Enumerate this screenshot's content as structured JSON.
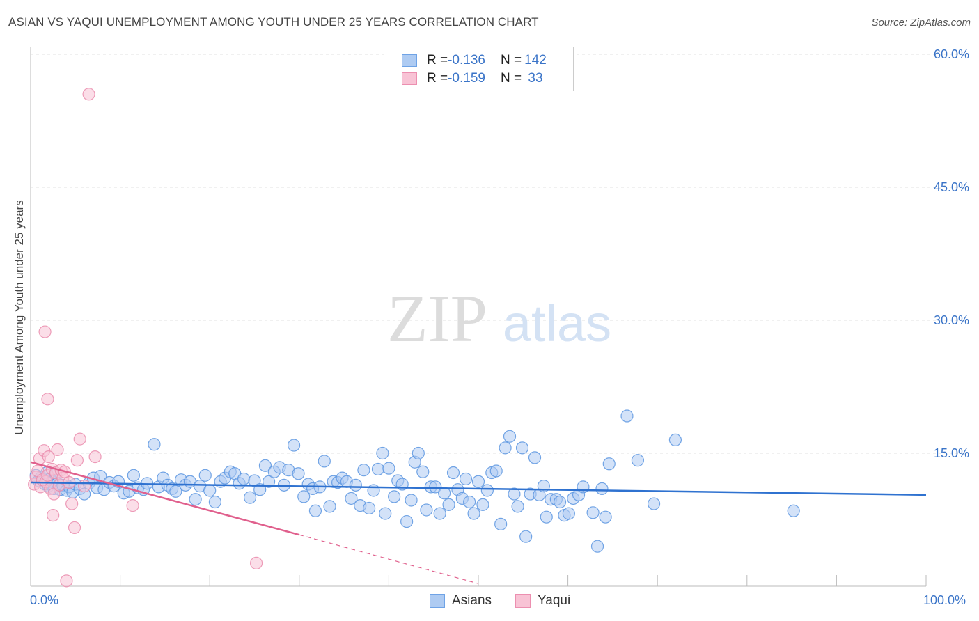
{
  "title": "ASIAN VS YAQUI UNEMPLOYMENT AMONG YOUTH UNDER 25 YEARS CORRELATION CHART",
  "source": "Source: ZipAtlas.com",
  "watermark": {
    "zip": "ZIP",
    "atlas": "atlas"
  },
  "legend": {
    "rows": [
      {
        "r_label": "R = ",
        "r_value": "-0.136",
        "n_label": "N = ",
        "n_value": "142",
        "color": "#6fa3e6",
        "fill": "#aecbf2"
      },
      {
        "r_label": "R = ",
        "r_value": "-0.159",
        "n_label": "N = ",
        "n_value": " 33",
        "color": "#ec8fb0",
        "fill": "#f8c3d5"
      }
    ]
  },
  "bottom_legend": {
    "asians": "Asians",
    "yaqui": "Yaqui"
  },
  "x_axis_labels": {
    "min": "0.0%",
    "max": "100.0%"
  },
  "chart_data": {
    "type": "scatter",
    "title": "ASIAN VS YAQUI UNEMPLOYMENT AMONG YOUTH UNDER 25 YEARS CORRELATION CHART",
    "xlabel": "",
    "ylabel": "Unemployment Among Youth under 25 years",
    "xlim": [
      0,
      100
    ],
    "ylim": [
      0,
      60
    ],
    "yticks": [
      15,
      30,
      45,
      60
    ],
    "ytick_labels": [
      "15.0%",
      "30.0%",
      "45.0%",
      "60.0%"
    ],
    "grid": true,
    "series": [
      {
        "name": "Asians",
        "color": "#5b95e0",
        "fill": "#aecbf2",
        "trend": {
          "x": [
            0,
            100
          ],
          "y": [
            11.7,
            10.3
          ],
          "color": "#2f72d0"
        },
        "points": [
          [
            0.6,
            12.5
          ],
          [
            0.9,
            11.9
          ],
          [
            1.2,
            12.3
          ],
          [
            1.4,
            12.0
          ],
          [
            1.6,
            11.5
          ],
          [
            1.8,
            12.8
          ],
          [
            2.0,
            11.3
          ],
          [
            2.2,
            12.1
          ],
          [
            2.4,
            11.8
          ],
          [
            2.6,
            11.0
          ],
          [
            2.8,
            12.6
          ],
          [
            3.0,
            11.6
          ],
          [
            3.3,
            10.9
          ],
          [
            3.6,
            11.4
          ],
          [
            4.0,
            10.8
          ],
          [
            4.3,
            11.2
          ],
          [
            4.7,
            10.6
          ],
          [
            5.0,
            11.5
          ],
          [
            5.5,
            11.0
          ],
          [
            6.0,
            10.4
          ],
          [
            6.5,
            11.6
          ],
          [
            7.0,
            12.2
          ],
          [
            7.4,
            11.1
          ],
          [
            7.8,
            12.4
          ],
          [
            8.2,
            10.9
          ],
          [
            8.8,
            11.7
          ],
          [
            9.3,
            11.3
          ],
          [
            9.8,
            11.8
          ],
          [
            10.4,
            10.5
          ],
          [
            11.0,
            10.7
          ],
          [
            11.5,
            12.5
          ],
          [
            12.0,
            11.1
          ],
          [
            12.6,
            10.9
          ],
          [
            13.0,
            11.6
          ],
          [
            13.8,
            16.0
          ],
          [
            14.3,
            11.2
          ],
          [
            14.8,
            12.2
          ],
          [
            15.3,
            11.4
          ],
          [
            15.8,
            11.0
          ],
          [
            16.2,
            10.7
          ],
          [
            16.8,
            12.0
          ],
          [
            17.3,
            11.4
          ],
          [
            17.8,
            11.8
          ],
          [
            18.4,
            9.8
          ],
          [
            18.9,
            11.3
          ],
          [
            19.5,
            12.5
          ],
          [
            20.0,
            10.8
          ],
          [
            20.6,
            9.5
          ],
          [
            21.2,
            11.8
          ],
          [
            21.7,
            12.2
          ],
          [
            22.3,
            12.9
          ],
          [
            22.8,
            12.7
          ],
          [
            23.3,
            11.6
          ],
          [
            23.8,
            12.1
          ],
          [
            24.5,
            10.0
          ],
          [
            25.0,
            11.9
          ],
          [
            25.6,
            10.9
          ],
          [
            26.2,
            13.6
          ],
          [
            26.6,
            11.8
          ],
          [
            27.2,
            12.9
          ],
          [
            27.8,
            13.4
          ],
          [
            28.3,
            11.4
          ],
          [
            28.8,
            13.1
          ],
          [
            29.4,
            15.9
          ],
          [
            29.9,
            12.7
          ],
          [
            30.5,
            10.1
          ],
          [
            31.0,
            11.5
          ],
          [
            31.5,
            11.0
          ],
          [
            31.8,
            8.5
          ],
          [
            32.3,
            11.2
          ],
          [
            32.8,
            14.1
          ],
          [
            33.4,
            9.0
          ],
          [
            33.8,
            11.8
          ],
          [
            34.3,
            11.7
          ],
          [
            34.8,
            12.2
          ],
          [
            35.3,
            11.8
          ],
          [
            35.8,
            9.9
          ],
          [
            36.3,
            11.4
          ],
          [
            36.8,
            9.1
          ],
          [
            37.2,
            13.1
          ],
          [
            37.8,
            8.8
          ],
          [
            38.3,
            10.8
          ],
          [
            38.8,
            13.2
          ],
          [
            39.3,
            15.0
          ],
          [
            39.6,
            8.2
          ],
          [
            40.0,
            13.3
          ],
          [
            40.6,
            10.1
          ],
          [
            41.0,
            11.9
          ],
          [
            41.5,
            11.5
          ],
          [
            42.0,
            7.3
          ],
          [
            42.5,
            9.7
          ],
          [
            42.9,
            14.0
          ],
          [
            43.3,
            15.0
          ],
          [
            43.8,
            12.9
          ],
          [
            44.2,
            8.6
          ],
          [
            44.7,
            11.2
          ],
          [
            45.2,
            11.2
          ],
          [
            45.7,
            8.2
          ],
          [
            46.2,
            10.5
          ],
          [
            46.7,
            9.2
          ],
          [
            47.2,
            12.8
          ],
          [
            47.7,
            10.9
          ],
          [
            48.2,
            9.9
          ],
          [
            48.6,
            12.1
          ],
          [
            49.0,
            9.5
          ],
          [
            49.5,
            8.2
          ],
          [
            50.0,
            11.8
          ],
          [
            50.5,
            9.2
          ],
          [
            51.0,
            10.8
          ],
          [
            51.5,
            12.8
          ],
          [
            52.0,
            13.0
          ],
          [
            52.5,
            7.0
          ],
          [
            53.0,
            15.6
          ],
          [
            53.5,
            16.9
          ],
          [
            54.0,
            10.4
          ],
          [
            54.4,
            9.0
          ],
          [
            54.9,
            15.6
          ],
          [
            55.3,
            5.6
          ],
          [
            55.8,
            10.4
          ],
          [
            56.3,
            14.5
          ],
          [
            56.8,
            10.3
          ],
          [
            57.3,
            11.3
          ],
          [
            57.6,
            7.8
          ],
          [
            58.1,
            9.8
          ],
          [
            58.7,
            9.8
          ],
          [
            59.1,
            9.5
          ],
          [
            59.6,
            8.0
          ],
          [
            60.1,
            8.2
          ],
          [
            60.6,
            9.9
          ],
          [
            61.2,
            10.3
          ],
          [
            61.7,
            11.2
          ],
          [
            62.8,
            8.3
          ],
          [
            63.3,
            4.5
          ],
          [
            63.8,
            11.0
          ],
          [
            64.2,
            7.8
          ],
          [
            64.6,
            13.8
          ],
          [
            66.6,
            19.2
          ],
          [
            67.8,
            14.2
          ],
          [
            69.6,
            9.3
          ],
          [
            72.0,
            16.5
          ],
          [
            85.2,
            8.5
          ]
        ]
      },
      {
        "name": "Yaqui",
        "color": "#ea8cad",
        "fill": "#f8c3d5",
        "trend": {
          "x": [
            0,
            30
          ],
          "y": [
            14.0,
            5.8
          ],
          "color": "#e0608d",
          "dash_x": [
            30,
            50
          ],
          "dash_y": [
            5.8,
            0.3
          ]
        },
        "points": [
          [
            0.4,
            11.5
          ],
          [
            0.6,
            12.3
          ],
          [
            0.8,
            13.0
          ],
          [
            1.0,
            14.4
          ],
          [
            1.1,
            11.2
          ],
          [
            1.3,
            12.0
          ],
          [
            1.5,
            15.3
          ],
          [
            1.7,
            11.8
          ],
          [
            1.9,
            12.5
          ],
          [
            2.0,
            14.6
          ],
          [
            2.2,
            11.0
          ],
          [
            2.4,
            13.2
          ],
          [
            2.6,
            10.4
          ],
          [
            2.8,
            12.8
          ],
          [
            3.0,
            15.4
          ],
          [
            3.2,
            11.4
          ],
          [
            3.4,
            13.1
          ],
          [
            3.6,
            12.2
          ],
          [
            3.8,
            12.9
          ],
          [
            4.0,
            0.6
          ],
          [
            4.3,
            11.7
          ],
          [
            4.6,
            9.3
          ],
          [
            4.9,
            6.6
          ],
          [
            5.2,
            14.2
          ],
          [
            5.5,
            16.6
          ],
          [
            6.0,
            11.3
          ],
          [
            6.5,
            55.5
          ],
          [
            7.2,
            14.6
          ],
          [
            1.6,
            28.7
          ],
          [
            1.9,
            21.1
          ],
          [
            2.5,
            8.0
          ],
          [
            11.4,
            9.1
          ],
          [
            25.2,
            2.6
          ]
        ]
      }
    ]
  }
}
